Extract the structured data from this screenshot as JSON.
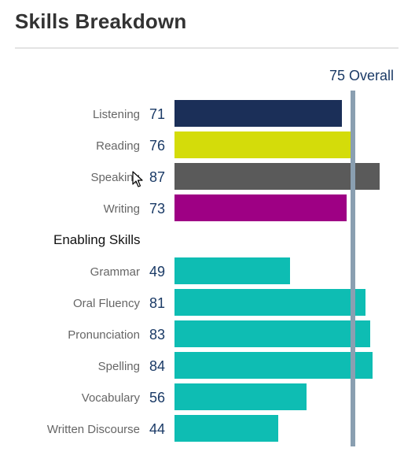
{
  "header": {
    "title": "Skills Breakdown"
  },
  "chart_data": {
    "type": "bar",
    "orientation": "horizontal",
    "title": "Skills Breakdown",
    "overall": {
      "value": 75,
      "label": "75 Overall",
      "color": "#8a9fb1"
    },
    "xlim": [
      0,
      100
    ],
    "grid": false,
    "legend": "none",
    "groups": [
      {
        "heading": "",
        "items": [
          {
            "label": "Listening",
            "value": 71,
            "color": "#1b2f58"
          },
          {
            "label": "Reading",
            "value": 76,
            "color": "#d4dc0a"
          },
          {
            "label": "Speaking",
            "value": 87,
            "color": "#5a5a5a"
          },
          {
            "label": "Writing",
            "value": 73,
            "color": "#9e0084"
          }
        ]
      },
      {
        "heading": "Enabling Skills",
        "items": [
          {
            "label": "Grammar",
            "value": 49,
            "color": "#0ebdb3"
          },
          {
            "label": "Oral Fluency",
            "value": 81,
            "color": "#0ebdb3"
          },
          {
            "label": "Pronunciation",
            "value": 83,
            "color": "#0ebdb3"
          },
          {
            "label": "Spelling",
            "value": 84,
            "color": "#0ebdb3"
          },
          {
            "label": "Vocabulary",
            "value": 56,
            "color": "#0ebdb3"
          },
          {
            "label": "Written Discourse",
            "value": 44,
            "color": "#0ebdb3"
          }
        ]
      }
    ]
  },
  "colors": {
    "score_text": "#1a3a66",
    "label_text": "#666666",
    "heading_text": "#111111",
    "title_text": "#333333"
  },
  "icons": {
    "cursor": "mouse-pointer-icon"
  }
}
